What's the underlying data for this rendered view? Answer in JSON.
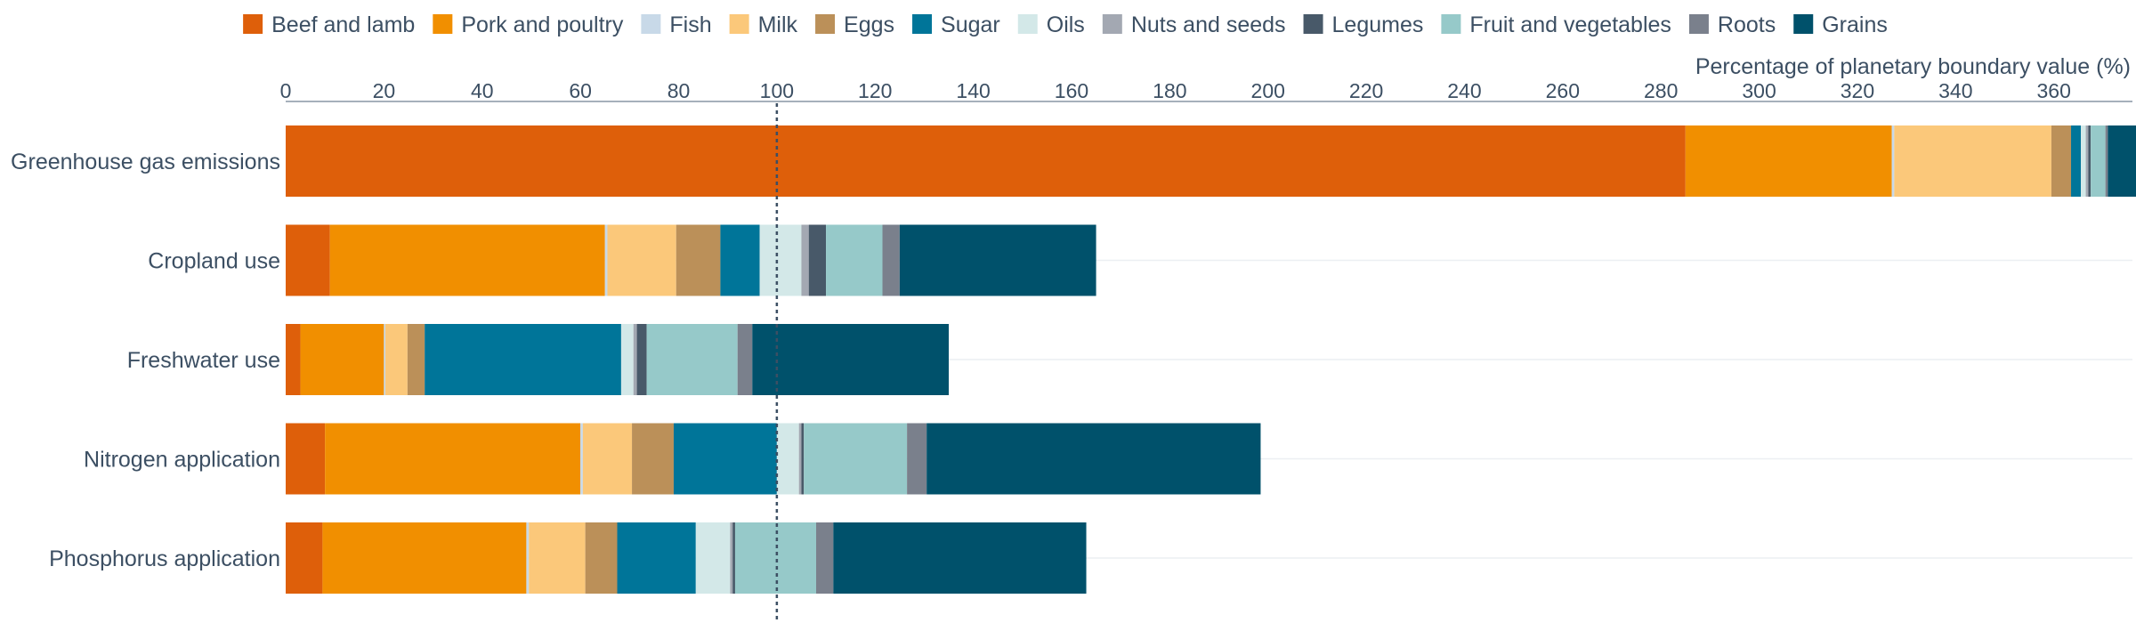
{
  "chart_data": {
    "type": "bar",
    "orientation": "horizontal",
    "stacked": true,
    "title": "",
    "xlabel": "Percentage of planetary boundary value (%)",
    "ylabel": "",
    "xlim": [
      0,
      376
    ],
    "x_ticks": [
      0,
      20,
      40,
      60,
      80,
      100,
      120,
      140,
      160,
      180,
      200,
      220,
      240,
      260,
      280,
      300,
      320,
      340,
      360
    ],
    "reference_line": 100,
    "legend_position": "top",
    "categories": [
      "Greenhouse gas emissions",
      "Cropland use",
      "Freshwater use",
      "Nitrogen application",
      "Phosphorus application"
    ],
    "series": [
      {
        "name": "Beef and lamb",
        "color": "#de5f0a",
        "values": [
          285,
          9,
          3,
          8,
          7.5
        ]
      },
      {
        "name": "Pork and poultry",
        "color": "#f18f00",
        "values": [
          42,
          56,
          17,
          52,
          41.5
        ]
      },
      {
        "name": "Fish",
        "color": "#c8d9e8",
        "values": [
          0.5,
          0.5,
          0.3,
          0.5,
          0.5
        ]
      },
      {
        "name": "Milk",
        "color": "#fbc87a",
        "values": [
          32,
          14,
          4.5,
          10,
          11.5
        ]
      },
      {
        "name": "Eggs",
        "color": "#bb9059",
        "values": [
          4,
          9,
          3.5,
          8.5,
          6.5
        ]
      },
      {
        "name": "Sugar",
        "color": "#007599",
        "values": [
          2,
          8,
          40,
          21,
          16
        ]
      },
      {
        "name": "Oils",
        "color": "#d3e8e8",
        "values": [
          1,
          8.5,
          2.5,
          4.5,
          7
        ]
      },
      {
        "name": "Nuts and seeds",
        "color": "#a3a8b2",
        "values": [
          0.5,
          1.5,
          0.7,
          0.5,
          0.5
        ]
      },
      {
        "name": "Legumes",
        "color": "#485969",
        "values": [
          0.5,
          3.5,
          2,
          0.5,
          0.5
        ]
      },
      {
        "name": "Fruit and vegetables",
        "color": "#96c9c9",
        "values": [
          3,
          11.5,
          18.5,
          21,
          16.5
        ]
      },
      {
        "name": "Roots",
        "color": "#7a808c",
        "values": [
          0.5,
          3.5,
          3,
          4,
          3.5
        ]
      },
      {
        "name": "Grains",
        "color": "#00516b",
        "values": [
          6,
          40,
          40,
          68,
          51.5
        ]
      }
    ]
  }
}
